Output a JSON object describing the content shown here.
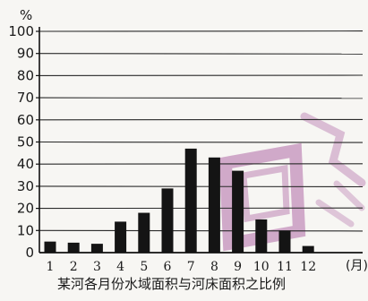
{
  "chart_data": {
    "type": "bar",
    "title": "某河各月份水域面积与河床面积之比例",
    "xlabel": "",
    "ylabel": "",
    "y_unit": "%",
    "x_unit": "(月)",
    "categories": [
      "1",
      "2",
      "3",
      "4",
      "5",
      "6",
      "7",
      "8",
      "9",
      "10",
      "11",
      "12"
    ],
    "values": [
      5,
      4.5,
      4,
      14,
      18,
      29,
      47,
      43,
      37,
      15,
      10,
      3
    ],
    "ylim": [
      0,
      100
    ],
    "yticks": [
      0,
      10,
      20,
      30,
      40,
      50,
      60,
      70,
      80,
      90,
      100
    ],
    "grid": true,
    "legend": "none",
    "bar_color": "#141414",
    "watermark_color": "#b06aa6"
  }
}
